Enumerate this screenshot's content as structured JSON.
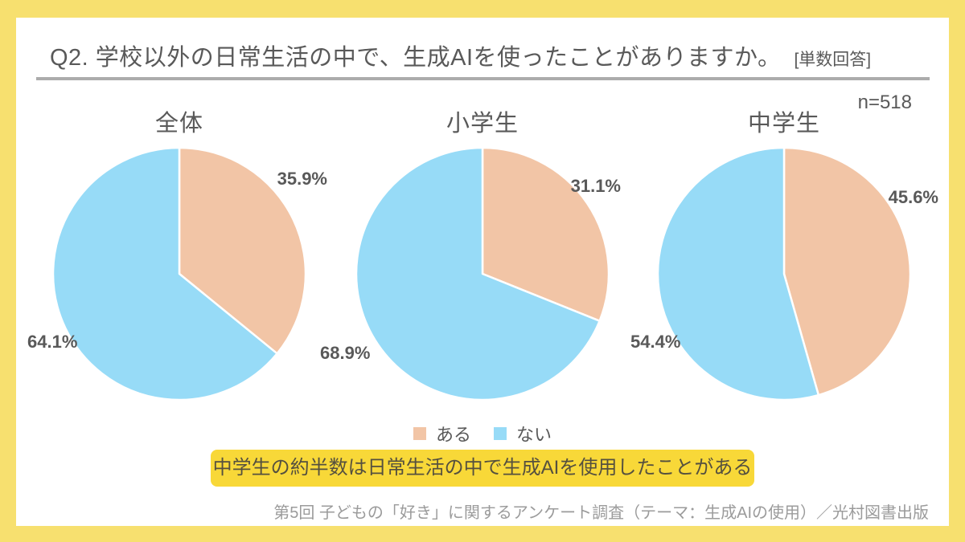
{
  "header": {
    "title": "Q2. 学校以外の日常生活の中で、生成AIを使ったことがありますか。",
    "note": "[単数回答]"
  },
  "meta": {
    "n_label": "n=518"
  },
  "chart_data": {
    "type": "pie",
    "title": "Q2. 学校以外の日常生活の中で、生成AIを使ったことがありますか。[単数回答]",
    "sample_size": 518,
    "categories": [
      "ある",
      "ない"
    ],
    "slice_colors": [
      "#F2C5A6",
      "#97DBF7"
    ],
    "start_angle": "top",
    "direction": "clockwise",
    "legend_position": "bottom-center",
    "pies": [
      {
        "title": "全体",
        "values": [
          35.9,
          64.1
        ],
        "labels": [
          "35.9%",
          "64.1%"
        ]
      },
      {
        "title": "小学生",
        "values": [
          31.1,
          68.9
        ],
        "labels": [
          "31.1%",
          "68.9%"
        ]
      },
      {
        "title": "中学生",
        "values": [
          45.6,
          54.4
        ],
        "labels": [
          "45.6%",
          "54.4%"
        ]
      }
    ]
  },
  "legend": {
    "items": [
      {
        "label": "ある"
      },
      {
        "label": "ない"
      }
    ]
  },
  "highlight": {
    "text": "中学生の約半数は日常生活の中で生成AIを使用したことがある"
  },
  "source": {
    "text": "第5回 子どもの「好き」に関するアンケート調査（テーマ：生成AIの使用）／光村図書出版"
  },
  "colors": {
    "frame_yellow": "#F7E06F",
    "highlight_yellow": "#F8D838",
    "slice_aru": "#F2C5A6",
    "slice_nai": "#97DBF7",
    "text_dark": "#595959",
    "text_source": "#9B9B9B",
    "underline_gray": "#ACACAC"
  }
}
